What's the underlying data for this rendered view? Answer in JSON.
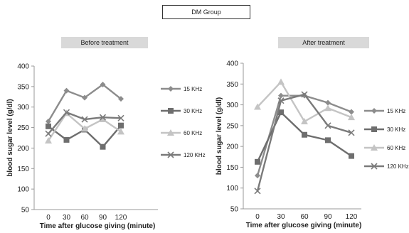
{
  "header": {
    "group_label": "DM Group"
  },
  "colors": {
    "series": [
      "#8c8c8c",
      "#6e6e6e",
      "#c4c4c4",
      "#7a7a7a"
    ],
    "axis": "#999999",
    "panel_title_bg": "#d9d9d9"
  },
  "chart_data": [
    {
      "type": "line",
      "title": "Before treatment",
      "xlabel": "Time after glucose giving (minute)",
      "ylabel": "blood sugar level (g/dl)",
      "x": [
        0,
        30,
        60,
        90,
        120
      ],
      "ylim": [
        50,
        400
      ],
      "yticks": [
        50,
        100,
        150,
        200,
        250,
        300,
        350,
        400
      ],
      "grid": false,
      "legend": "right",
      "series": [
        {
          "name": "15 KHz",
          "marker": "diamond",
          "values": [
            265,
            340,
            323,
            355,
            320
          ]
        },
        {
          "name": "30 KHz",
          "marker": "square",
          "values": [
            253,
            220,
            245,
            203,
            255
          ]
        },
        {
          "name": "60 KHz",
          "marker": "triangle",
          "values": [
            218,
            285,
            247,
            270,
            240
          ]
        },
        {
          "name": "120 KHz",
          "marker": "x",
          "values": [
            235,
            287,
            270,
            275,
            273
          ]
        }
      ]
    },
    {
      "type": "line",
      "title": "After treatment",
      "xlabel": "Time after glucose giving (minute)",
      "ylabel": "blood sugar level (g/dl)",
      "x": [
        0,
        30,
        60,
        90,
        120
      ],
      "ylim": [
        50,
        400
      ],
      "yticks": [
        50,
        100,
        150,
        200,
        250,
        300,
        350,
        400
      ],
      "grid": false,
      "legend": "right",
      "series": [
        {
          "name": "15 KHz",
          "marker": "diamond",
          "values": [
            130,
            322,
            322,
            305,
            283
          ]
        },
        {
          "name": "30 KHz",
          "marker": "square",
          "values": [
            163,
            282,
            228,
            215,
            177
          ]
        },
        {
          "name": "60 KHz",
          "marker": "triangle",
          "values": [
            295,
            355,
            260,
            292,
            270
          ]
        },
        {
          "name": "120 KHz",
          "marker": "x",
          "values": [
            93,
            310,
            325,
            250,
            233
          ]
        }
      ]
    }
  ]
}
